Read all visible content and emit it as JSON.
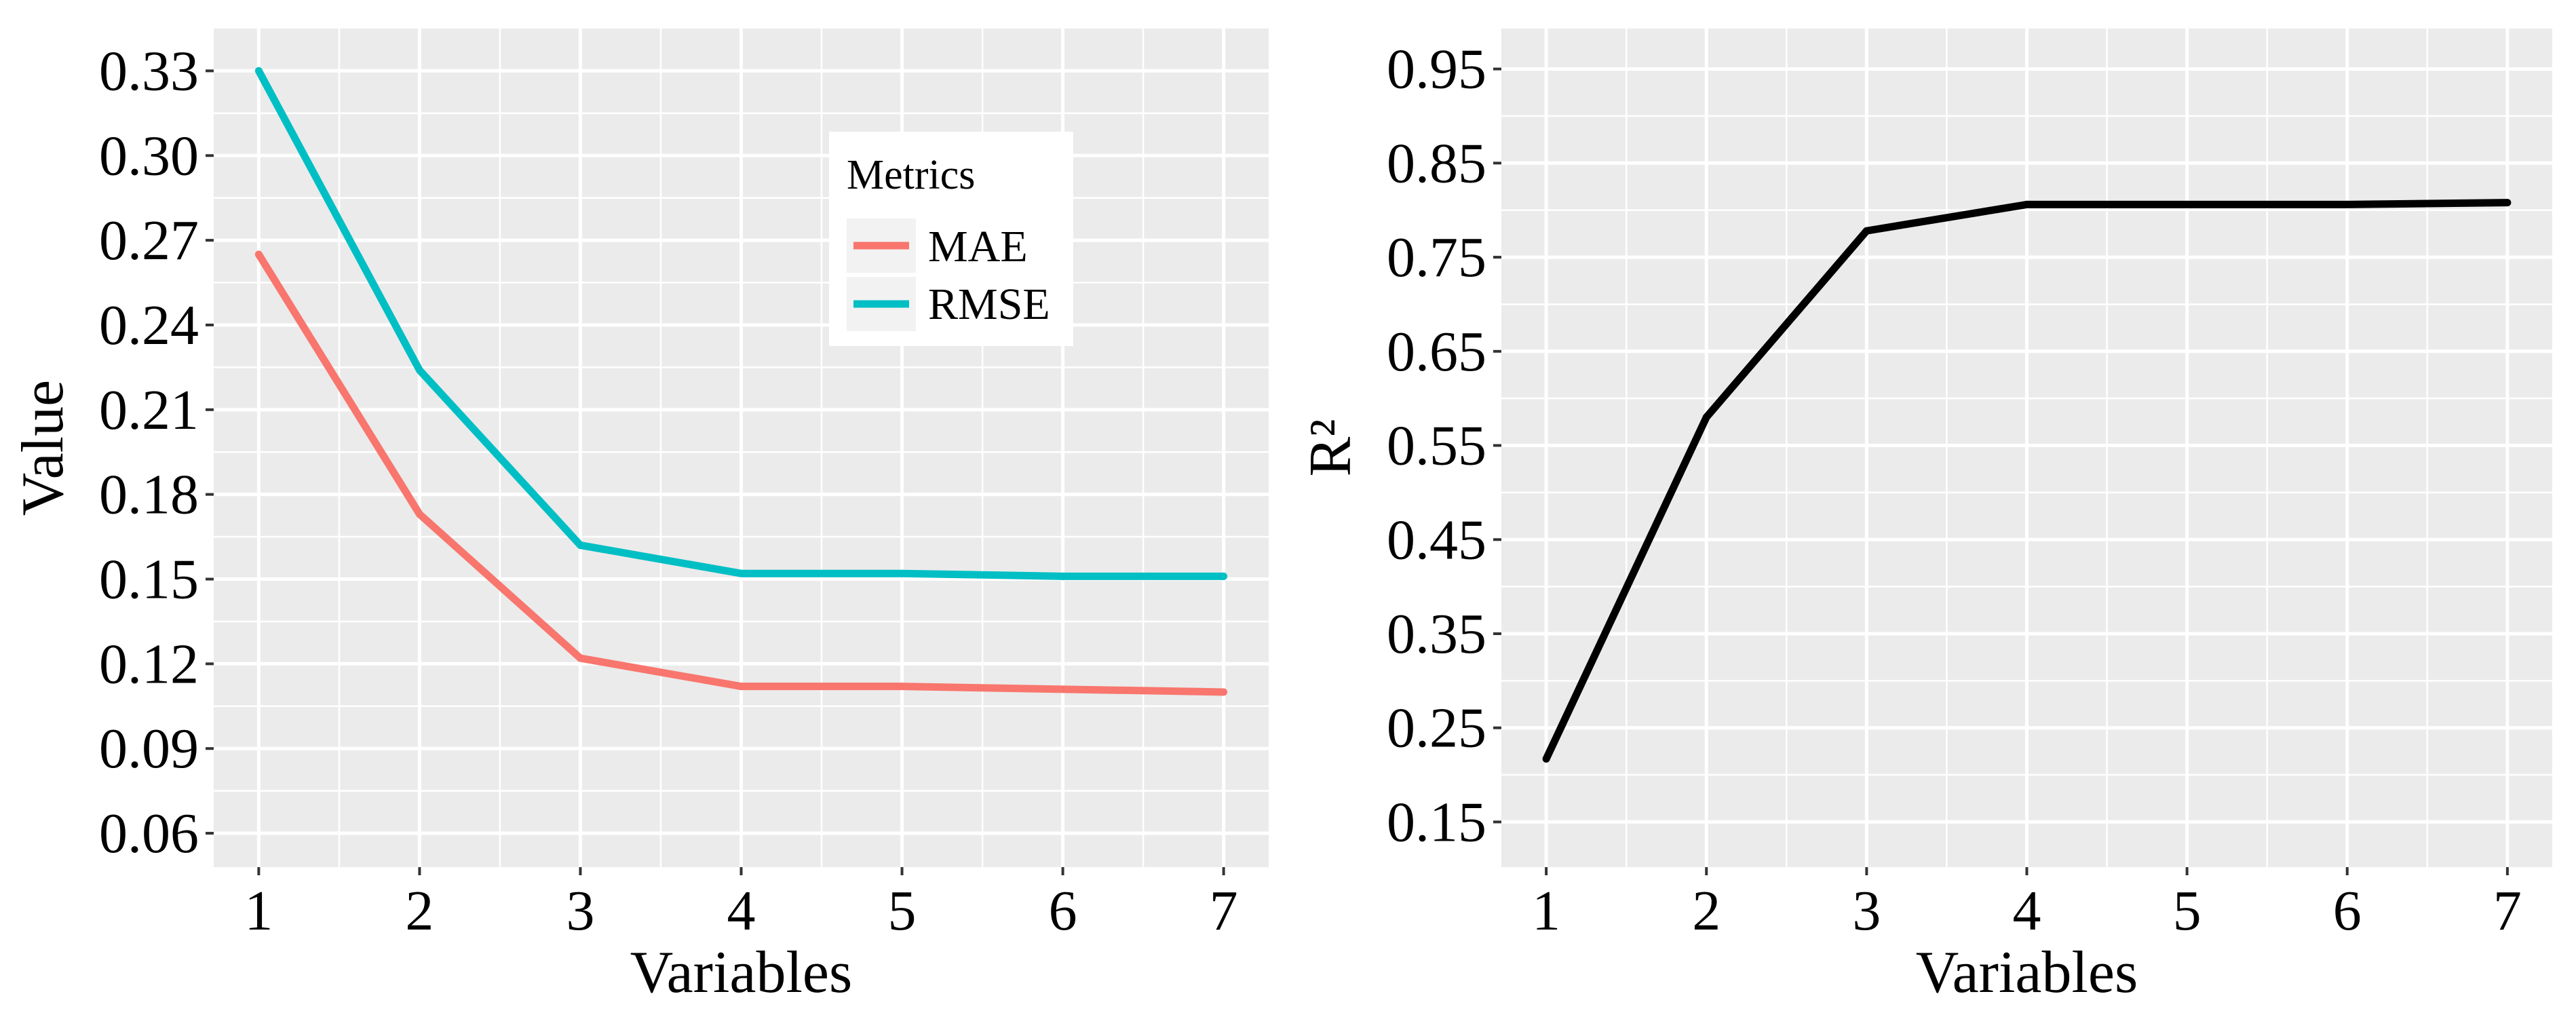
{
  "chart_data": [
    {
      "type": "line",
      "title": "",
      "xlabel": "Variables",
      "ylabel": "Value",
      "x": [
        1,
        2,
        3,
        4,
        5,
        6,
        7
      ],
      "xticks": [
        "1",
        "2",
        "3",
        "4",
        "5",
        "6",
        "7"
      ],
      "xlim": [
        0.72,
        7.28
      ],
      "yticks": [
        "0.06",
        "0.09",
        "0.12",
        "0.15",
        "0.18",
        "0.21",
        "0.24",
        "0.27",
        "0.30",
        "0.33"
      ],
      "ylim": [
        0.048,
        0.345
      ],
      "grid": true,
      "legend": {
        "title": "Metrics",
        "position": "top-right"
      },
      "series": [
        {
          "name": "MAE",
          "color": "#F8766D",
          "values": [
            0.265,
            0.173,
            0.122,
            0.112,
            0.112,
            0.111,
            0.11
          ]
        },
        {
          "name": "RMSE",
          "color": "#00BFC4",
          "values": [
            0.33,
            0.224,
            0.162,
            0.152,
            0.152,
            0.151,
            0.151
          ]
        }
      ]
    },
    {
      "type": "line",
      "title": "",
      "xlabel": "Variables",
      "ylabel": "R²",
      "x": [
        1,
        2,
        3,
        4,
        5,
        6,
        7
      ],
      "xticks": [
        "1",
        "2",
        "3",
        "4",
        "5",
        "6",
        "7"
      ],
      "xlim": [
        0.72,
        7.28
      ],
      "yticks": [
        "0.15",
        "0.25",
        "0.35",
        "0.45",
        "0.55",
        "0.65",
        "0.75",
        "0.85",
        "0.95"
      ],
      "ylim": [
        0.102,
        0.993
      ],
      "grid": true,
      "series": [
        {
          "name": "R²",
          "color": "#000000",
          "values": [
            0.217,
            0.58,
            0.778,
            0.806,
            0.806,
            0.806,
            0.808
          ]
        }
      ]
    }
  ]
}
